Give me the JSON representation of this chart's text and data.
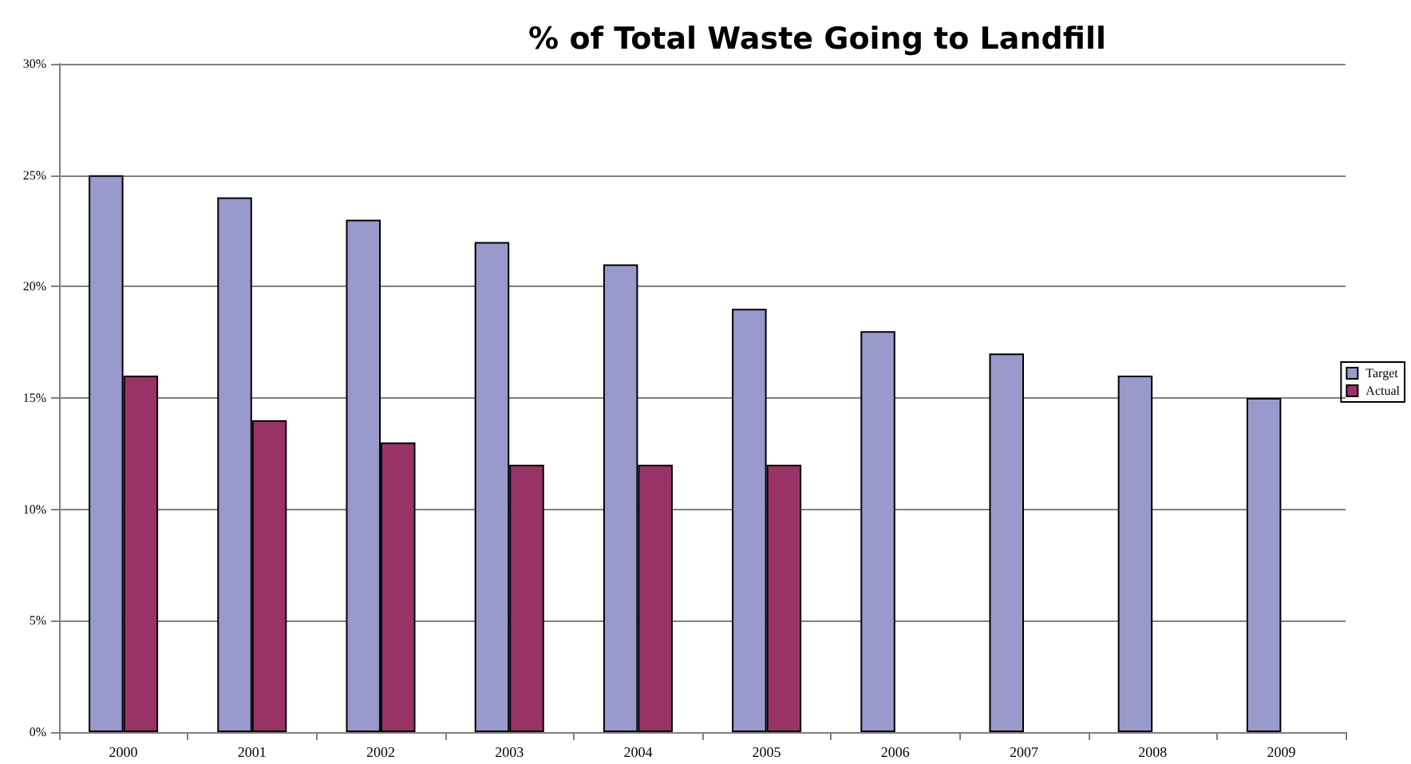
{
  "chart_data": {
    "type": "bar",
    "title": "% of Total Waste Going to Landfill",
    "categories": [
      "2000",
      "2001",
      "2002",
      "2003",
      "2004",
      "2005",
      "2006",
      "2007",
      "2008",
      "2009"
    ],
    "series": [
      {
        "name": "Target",
        "color": "#9999cc",
        "values": [
          25,
          24,
          23,
          22,
          21,
          19,
          18,
          17,
          16,
          15
        ]
      },
      {
        "name": "Actual",
        "color": "#993366",
        "values": [
          16,
          14,
          13,
          12,
          12,
          12,
          null,
          null,
          null,
          null
        ]
      }
    ],
    "ylim": [
      0,
      30
    ],
    "yticks": [
      {
        "value": 0,
        "label": "0%"
      },
      {
        "value": 5,
        "label": "5%"
      },
      {
        "value": 10,
        "label": "10%"
      },
      {
        "value": 15,
        "label": "15%"
      },
      {
        "value": 20,
        "label": "20%"
      },
      {
        "value": 25,
        "label": "25%"
      },
      {
        "value": 30,
        "label": "30%"
      }
    ],
    "grid": "y",
    "legend": "right"
  }
}
